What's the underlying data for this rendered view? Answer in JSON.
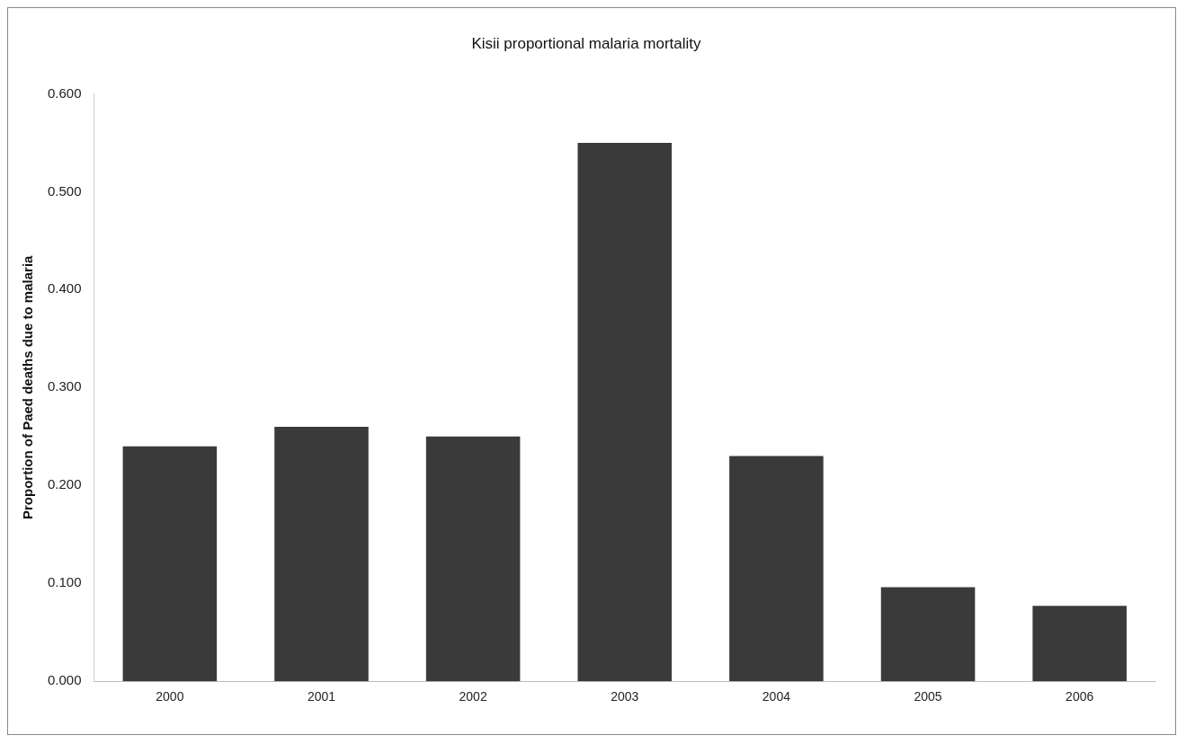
{
  "chart_data": {
    "type": "bar",
    "title": "Kisii proportional malaria mortality",
    "ylabel": "Proportion of Paed deaths due to malaria",
    "categories": [
      "2000",
      "2001",
      "2002",
      "2003",
      "2004",
      "2005",
      "2006"
    ],
    "values": [
      0.24,
      0.26,
      0.25,
      0.55,
      0.23,
      0.096,
      0.077
    ],
    "color": "#3a3a3a",
    "ylim": [
      0,
      0.6
    ],
    "yticks": [
      {
        "value": 0,
        "label": "0.000"
      },
      {
        "value": 0.1,
        "label": "0.100"
      },
      {
        "value": 0.2,
        "label": "0.200"
      },
      {
        "value": 0.3,
        "label": "0.300"
      },
      {
        "value": 0.4,
        "label": "0.400"
      },
      {
        "value": 0.5,
        "label": "0.500"
      },
      {
        "value": 0.6,
        "label": "0.600"
      }
    ],
    "grid": false,
    "legend": false
  }
}
